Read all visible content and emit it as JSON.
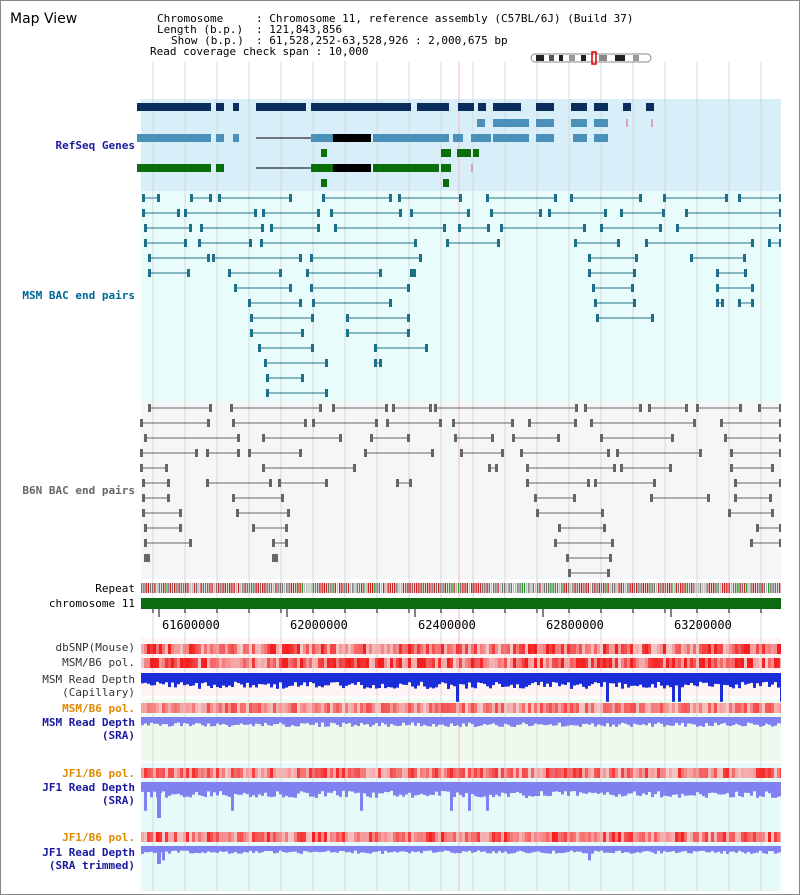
{
  "app": {
    "title": "Map View"
  },
  "info": {
    "chromosome_key": "Chromosome",
    "chromosome_val": ": Chromosome 11, reference assembly (C57BL/6J) (Build 37)",
    "length_key": "Length (b.p.)",
    "length_val": ": 121,843,856",
    "show_key": "Show (b.p.)",
    "show_val": ": 61,528,252-63,528,926 : 2,000,675 bp",
    "coverage": "Read coverage check span : 10,000"
  },
  "tracks": {
    "refseq": "RefSeq Genes",
    "msm_bac": "MSM BAC end pairs",
    "b6n_bac": "B6N BAC end pairs",
    "repeat": "Repeat",
    "chromosome": "chromosome 11",
    "dbsnp": "dbSNP(Mouse)",
    "msm_b6_pol_1": "MSM/B6 pol.",
    "msm_depth_cap_1": "MSM Read Depth",
    "msm_depth_cap_2": "(Capillary)",
    "msm_b6_pol_2": "MSM/B6 pol.",
    "msm_depth_sra_1": "MSM Read Depth",
    "msm_depth_sra_2": "(SRA)",
    "jf1_b6_pol_1": "JF1/B6 pol.",
    "jf1_depth_sra_1": "JF1 Read Depth",
    "jf1_depth_sra_2": "(SRA)",
    "jf1_b6_pol_2": "JF1/B6 pol.",
    "jf1_depth_trim_1": "JF1 Read Depth",
    "jf1_depth_trim_2": "(SRA trimmed)"
  },
  "axis": {
    "ticks": [
      "61600000",
      "62000000",
      "62400000",
      "62800000",
      "63200000"
    ]
  },
  "colors": {
    "refseq_bg": "#d8eef8",
    "msm_bg": "#e8fcfc",
    "b6n_bg": "#f4f6f8",
    "dark_blue": "#0a2d5e",
    "mid_blue": "#4a90b8",
    "green": "#0a6e0a",
    "msm_line": "#1f6f8b",
    "b6n_line": "#666666",
    "chromosome": "#0b6b10",
    "depth_capillary": "#1a2dd8",
    "depth_sra": "#8080f0",
    "label_blue": "#1a1aa0",
    "label_orange": "#e08a00",
    "label_teal": "#006699"
  }
}
